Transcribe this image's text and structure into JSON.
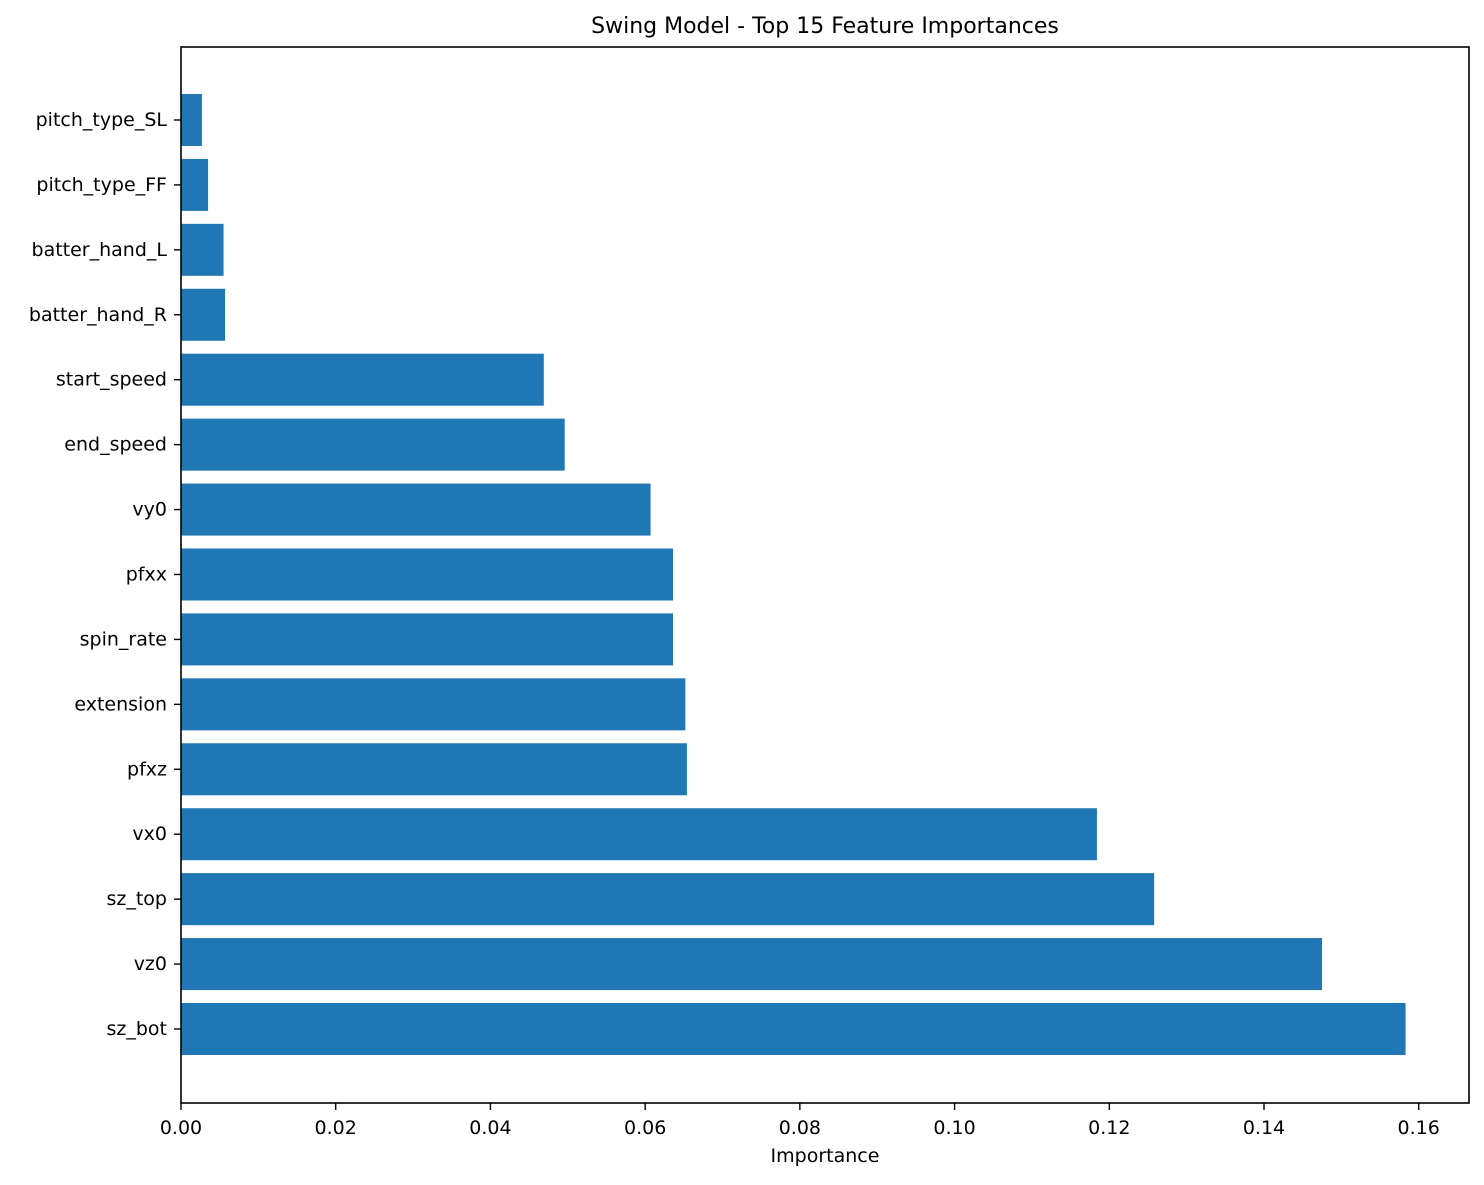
{
  "chart_data": {
    "type": "bar",
    "orientation": "horizontal",
    "title": "Swing Model - Top 15 Feature Importances",
    "xlabel": "Importance",
    "ylabel": "",
    "xlim": [
      0.0,
      0.1665
    ],
    "xticks": [
      "0.00",
      "0.02",
      "0.04",
      "0.06",
      "0.08",
      "0.10",
      "0.12",
      "0.14",
      "0.16"
    ],
    "grid": false,
    "legend": "none",
    "bar_color": "#1f77b4",
    "categories": [
      "sz_bot",
      "vz0",
      "sz_top",
      "vx0",
      "pfxz",
      "extension",
      "spin_rate",
      "pfxx",
      "vy0",
      "end_speed",
      "start_speed",
      "batter_hand_R",
      "batter_hand_L",
      "pitch_type_FF",
      "pitch_type_SL"
    ],
    "values": [
      0.1583,
      0.1475,
      0.1258,
      0.1184,
      0.0654,
      0.0652,
      0.0636,
      0.0636,
      0.0607,
      0.0496,
      0.0469,
      0.0057,
      0.0055,
      0.0035,
      0.0027
    ]
  }
}
